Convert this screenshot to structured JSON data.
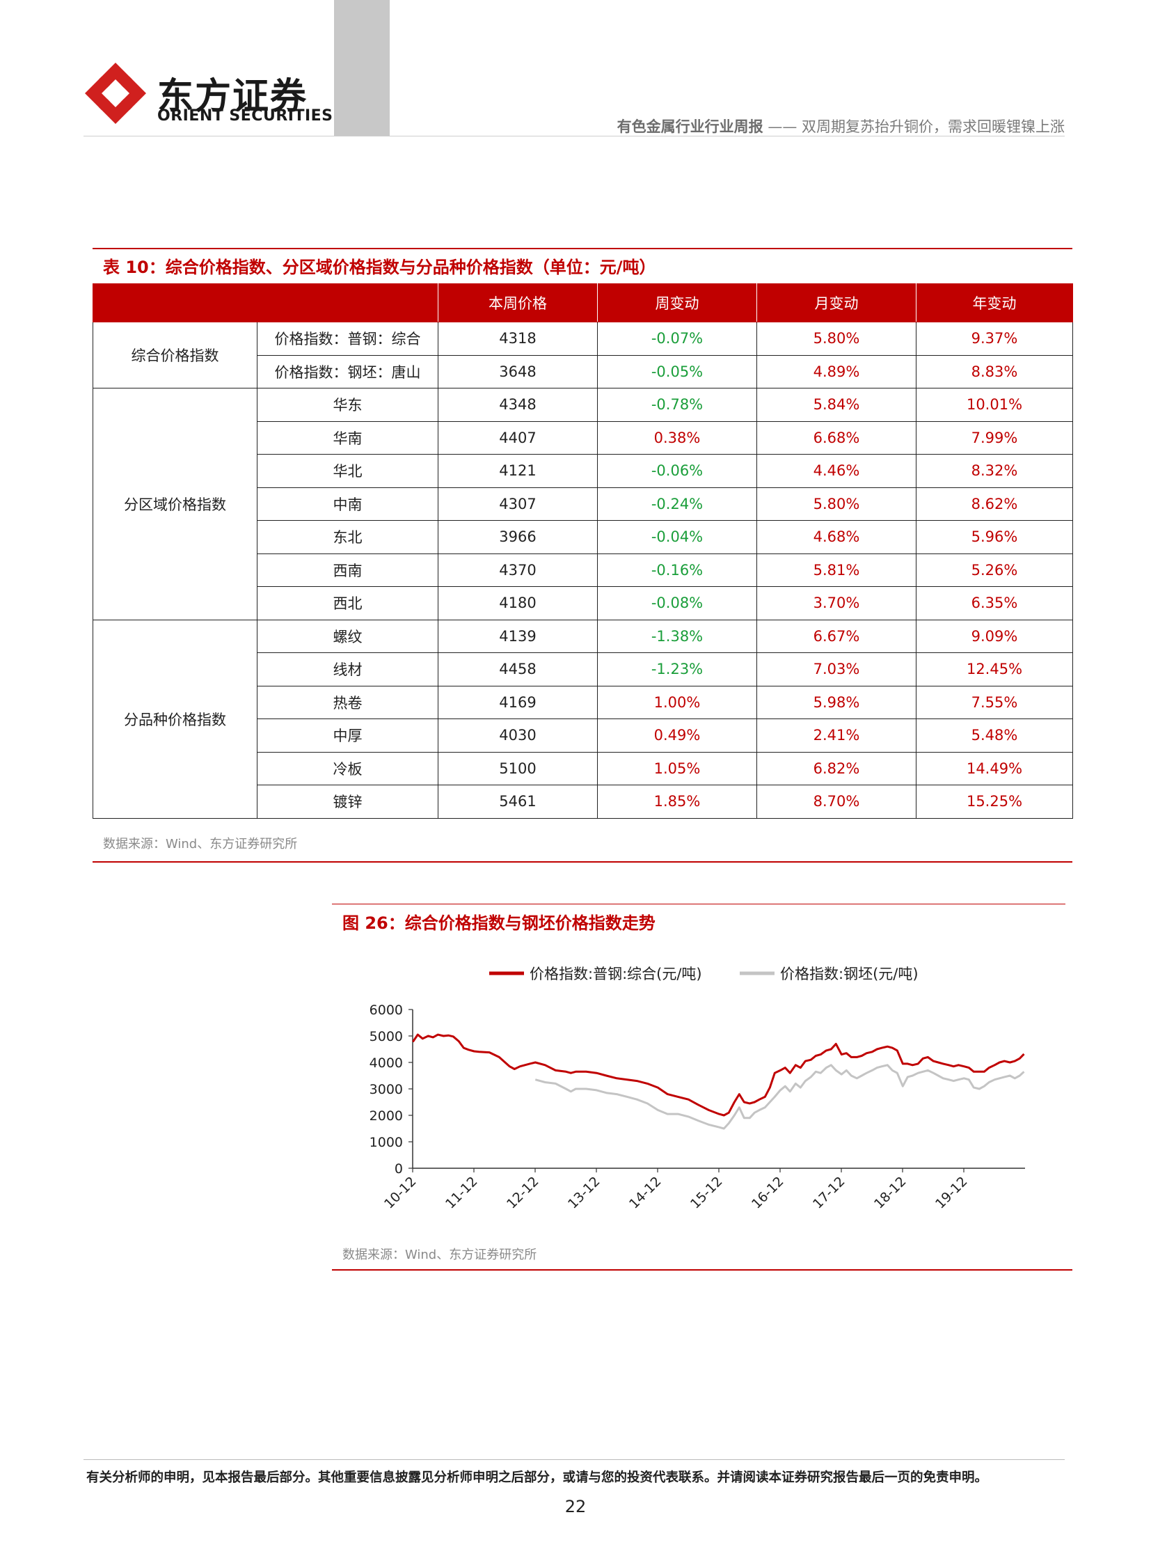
{
  "header": {
    "logo_cn": "东方证券",
    "logo_en": "ORIENT SECURITIES",
    "title_strong": "有色金属行业行业周报",
    "title_rest": " —— 双周期复苏抬升铜价，需求回暖锂镍上涨"
  },
  "table": {
    "title": "表 10：综合价格指数、分区域价格指数与分品种价格指数（单位：元/吨）",
    "headers": [
      "本周价格",
      "周变动",
      "月变动",
      "年变动"
    ],
    "groups": [
      {
        "category": "综合价格指数",
        "rows": [
          {
            "item": "价格指数：普钢：综合",
            "price": "4318",
            "week": "-0.07%",
            "month": "5.80%",
            "year": "9.37%"
          },
          {
            "item": "价格指数：钢坯：唐山",
            "price": "3648",
            "week": "-0.05%",
            "month": "4.89%",
            "year": "8.83%"
          }
        ]
      },
      {
        "category": "分区域价格指数",
        "rows": [
          {
            "item": "华东",
            "price": "4348",
            "week": "-0.78%",
            "month": "5.84%",
            "year": "10.01%"
          },
          {
            "item": "华南",
            "price": "4407",
            "week": "0.38%",
            "month": "6.68%",
            "year": "7.99%"
          },
          {
            "item": "华北",
            "price": "4121",
            "week": "-0.06%",
            "month": "4.46%",
            "year": "8.32%"
          },
          {
            "item": "中南",
            "price": "4307",
            "week": "-0.24%",
            "month": "5.80%",
            "year": "8.62%"
          },
          {
            "item": "东北",
            "price": "3966",
            "week": "-0.04%",
            "month": "4.68%",
            "year": "5.96%"
          },
          {
            "item": "西南",
            "price": "4370",
            "week": "-0.16%",
            "month": "5.81%",
            "year": "5.26%"
          },
          {
            "item": "西北",
            "price": "4180",
            "week": "-0.08%",
            "month": "3.70%",
            "year": "6.35%"
          }
        ]
      },
      {
        "category": "分品种价格指数",
        "rows": [
          {
            "item": "螺纹",
            "price": "4139",
            "week": "-1.38%",
            "month": "6.67%",
            "year": "9.09%"
          },
          {
            "item": "线材",
            "price": "4458",
            "week": "-1.23%",
            "month": "7.03%",
            "year": "12.45%"
          },
          {
            "item": "热卷",
            "price": "4169",
            "week": "1.00%",
            "month": "5.98%",
            "year": "7.55%"
          },
          {
            "item": "中厚",
            "price": "4030",
            "week": "0.49%",
            "month": "2.41%",
            "year": "5.48%"
          },
          {
            "item": "冷板",
            "price": "5100",
            "week": "1.05%",
            "month": "6.82%",
            "year": "14.49%"
          },
          {
            "item": "镀锌",
            "price": "5461",
            "week": "1.85%",
            "month": "8.70%",
            "year": "15.25%"
          }
        ]
      }
    ],
    "source": "数据来源：Wind、东方证券研究所"
  },
  "figure": {
    "title": "图 26：综合价格指数与钢坯价格指数走势",
    "source": "数据来源：Wind、东方证券研究所"
  },
  "chart_data": {
    "type": "line",
    "title": "",
    "xlabel": "",
    "ylabel": "",
    "ylim": [
      0,
      6000
    ],
    "yticks": [
      "0",
      "1000",
      "2000",
      "3000",
      "4000",
      "5000",
      "6000"
    ],
    "xticks": [
      "10-12",
      "11-12",
      "12-12",
      "13-12",
      "14-12",
      "15-12",
      "16-12",
      "17-12",
      "18-12",
      "19-12"
    ],
    "xlim": [
      2010.917,
      2020.917
    ],
    "legend_position": "top",
    "grid": false,
    "series": [
      {
        "name": "价格指数:普钢:综合(元/吨)",
        "color": "#c00000",
        "x": [
          2010.92,
          2011.0,
          2011.08,
          2011.17,
          2011.25,
          2011.33,
          2011.42,
          2011.5,
          2011.58,
          2011.67,
          2011.75,
          2011.83,
          2011.92,
          2012.0,
          2012.17,
          2012.33,
          2012.5,
          2012.58,
          2012.67,
          2012.75,
          2012.83,
          2012.92,
          2013.08,
          2013.25,
          2013.42,
          2013.5,
          2013.58,
          2013.75,
          2013.92,
          2014.08,
          2014.25,
          2014.42,
          2014.58,
          2014.75,
          2014.92,
          2015.08,
          2015.25,
          2015.42,
          2015.58,
          2015.75,
          2015.92,
          2016.0,
          2016.08,
          2016.17,
          2016.25,
          2016.33,
          2016.42,
          2016.5,
          2016.58,
          2016.67,
          2016.75,
          2016.83,
          2016.92,
          2017.0,
          2017.08,
          2017.17,
          2017.25,
          2017.33,
          2017.42,
          2017.5,
          2017.58,
          2017.67,
          2017.75,
          2017.83,
          2017.92,
          2018.0,
          2018.08,
          2018.17,
          2018.25,
          2018.33,
          2018.42,
          2018.5,
          2018.58,
          2018.67,
          2018.75,
          2018.83,
          2018.92,
          2019.0,
          2019.08,
          2019.17,
          2019.25,
          2019.33,
          2019.42,
          2019.5,
          2019.58,
          2019.67,
          2019.75,
          2019.83,
          2019.92,
          2020.0,
          2020.08,
          2020.17,
          2020.25,
          2020.33,
          2020.42,
          2020.5,
          2020.58,
          2020.67,
          2020.75,
          2020.83,
          2020.9
        ],
        "y": [
          4780,
          5050,
          4900,
          5000,
          4950,
          5050,
          5000,
          5020,
          4980,
          4800,
          4550,
          4480,
          4420,
          4400,
          4380,
          4200,
          3850,
          3750,
          3850,
          3900,
          3950,
          4000,
          3900,
          3700,
          3650,
          3600,
          3650,
          3650,
          3600,
          3500,
          3400,
          3350,
          3300,
          3200,
          3050,
          2800,
          2700,
          2600,
          2400,
          2200,
          2050,
          2000,
          2100,
          2500,
          2800,
          2500,
          2450,
          2500,
          2600,
          2700,
          3050,
          3600,
          3700,
          3800,
          3600,
          3900,
          3800,
          4050,
          4100,
          4250,
          4300,
          4450,
          4500,
          4700,
          4300,
          4350,
          4200,
          4200,
          4250,
          4350,
          4400,
          4500,
          4550,
          4600,
          4550,
          4450,
          3950,
          3950,
          3900,
          3950,
          4150,
          4200,
          4050,
          4000,
          3950,
          3900,
          3850,
          3900,
          3850,
          3800,
          3650,
          3650,
          3650,
          3800,
          3900,
          4000,
          4050,
          4000,
          4050,
          4150,
          4318
        ]
      },
      {
        "name": "价格指数:钢坯(元/吨)",
        "color": "#c4c4c4",
        "x": [
          2012.92,
          2013.08,
          2013.25,
          2013.42,
          2013.5,
          2013.58,
          2013.75,
          2013.92,
          2014.08,
          2014.25,
          2014.42,
          2014.58,
          2014.75,
          2014.92,
          2015.08,
          2015.25,
          2015.42,
          2015.58,
          2015.75,
          2015.92,
          2016.0,
          2016.08,
          2016.17,
          2016.25,
          2016.33,
          2016.42,
          2016.5,
          2016.58,
          2016.67,
          2016.75,
          2016.83,
          2016.92,
          2017.0,
          2017.08,
          2017.17,
          2017.25,
          2017.33,
          2017.42,
          2017.5,
          2017.58,
          2017.67,
          2017.75,
          2017.83,
          2017.92,
          2018.0,
          2018.08,
          2018.17,
          2018.25,
          2018.33,
          2018.42,
          2018.5,
          2018.58,
          2018.67,
          2018.75,
          2018.83,
          2018.92,
          2019.0,
          2019.08,
          2019.17,
          2019.25,
          2019.33,
          2019.42,
          2019.5,
          2019.58,
          2019.67,
          2019.75,
          2019.83,
          2019.92,
          2020.0,
          2020.08,
          2020.17,
          2020.25,
          2020.33,
          2020.42,
          2020.5,
          2020.58,
          2020.67,
          2020.75,
          2020.83,
          2020.9
        ],
        "y": [
          3350,
          3250,
          3200,
          3000,
          2900,
          3000,
          3000,
          2950,
          2850,
          2800,
          2700,
          2600,
          2450,
          2200,
          2050,
          2050,
          1950,
          1800,
          1650,
          1550,
          1500,
          1700,
          2000,
          2300,
          1900,
          1900,
          2100,
          2200,
          2300,
          2500,
          2700,
          2950,
          3100,
          2900,
          3200,
          3050,
          3300,
          3450,
          3650,
          3600,
          3800,
          3900,
          3700,
          3550,
          3700,
          3500,
          3400,
          3500,
          3600,
          3700,
          3800,
          3850,
          3900,
          3700,
          3600,
          3100,
          3450,
          3500,
          3600,
          3650,
          3700,
          3600,
          3500,
          3400,
          3350,
          3300,
          3350,
          3400,
          3350,
          3050,
          3000,
          3100,
          3250,
          3350,
          3400,
          3450,
          3500,
          3400,
          3500,
          3648
        ]
      }
    ]
  }
}
